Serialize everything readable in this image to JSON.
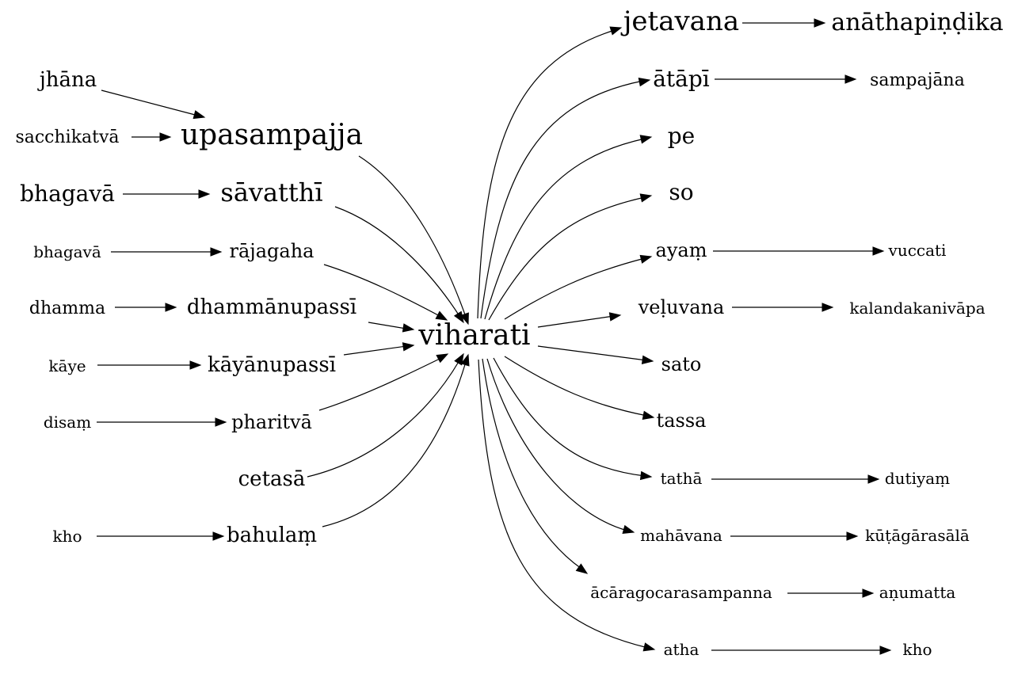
{
  "center": {
    "id": "viharati",
    "label": "viharati"
  },
  "nodes": [
    {
      "id": "jhana",
      "label": "jhāna"
    },
    {
      "id": "sacchikatva",
      "label": "sacchikatvā"
    },
    {
      "id": "upasampajja",
      "label": "upasampajja"
    },
    {
      "id": "bhagava1",
      "label": "bhagavā"
    },
    {
      "id": "savatthi",
      "label": "sāvatthī"
    },
    {
      "id": "bhagava2",
      "label": "bhagavā"
    },
    {
      "id": "rajagaha",
      "label": "rājagaha"
    },
    {
      "id": "dhamma",
      "label": "dhamma"
    },
    {
      "id": "dhammanupassi",
      "label": "dhammānupassī"
    },
    {
      "id": "kaye",
      "label": "kāye"
    },
    {
      "id": "kayanupassi",
      "label": "kāyānupassī"
    },
    {
      "id": "disam",
      "label": "disaṃ"
    },
    {
      "id": "pharitva",
      "label": "pharitvā"
    },
    {
      "id": "cetasa",
      "label": "cetasā"
    },
    {
      "id": "kho1",
      "label": "kho"
    },
    {
      "id": "bahulam",
      "label": "bahulaṃ"
    },
    {
      "id": "jetavana",
      "label": "jetavana"
    },
    {
      "id": "anathapindika",
      "label": "anāthapiṇḍika"
    },
    {
      "id": "atapi",
      "label": "ātāpī"
    },
    {
      "id": "sampajana",
      "label": "sampajāna"
    },
    {
      "id": "pe",
      "label": "pe"
    },
    {
      "id": "so",
      "label": "so"
    },
    {
      "id": "ayam",
      "label": "ayaṃ"
    },
    {
      "id": "vuccati",
      "label": "vuccati"
    },
    {
      "id": "veluvana",
      "label": "veḷuvana"
    },
    {
      "id": "kalandakanivapa",
      "label": "kalandakanivāpa"
    },
    {
      "id": "sato",
      "label": "sato"
    },
    {
      "id": "tassa",
      "label": "tassa"
    },
    {
      "id": "tatha",
      "label": "tathā"
    },
    {
      "id": "dutiyam",
      "label": "dutiyaṃ"
    },
    {
      "id": "mahavana",
      "label": "mahāvana"
    },
    {
      "id": "kutagarasala",
      "label": "kūṭāgārasālā"
    },
    {
      "id": "acaragocarasampanna",
      "label": "ācāragocarasampanna"
    },
    {
      "id": "anumatta",
      "label": "aṇumatta"
    },
    {
      "id": "atha",
      "label": "atha"
    },
    {
      "id": "kho2",
      "label": "kho"
    }
  ],
  "edges": [
    {
      "from": "jhana",
      "to": "upasampajja"
    },
    {
      "from": "sacchikatva",
      "to": "upasampajja"
    },
    {
      "from": "upasampajja",
      "to": "viharati"
    },
    {
      "from": "bhagava1",
      "to": "savatthi"
    },
    {
      "from": "savatthi",
      "to": "viharati"
    },
    {
      "from": "bhagava2",
      "to": "rajagaha"
    },
    {
      "from": "rajagaha",
      "to": "viharati"
    },
    {
      "from": "dhamma",
      "to": "dhammanupassi"
    },
    {
      "from": "dhammanupassi",
      "to": "viharati"
    },
    {
      "from": "kaye",
      "to": "kayanupassi"
    },
    {
      "from": "kayanupassi",
      "to": "viharati"
    },
    {
      "from": "disam",
      "to": "pharitva"
    },
    {
      "from": "pharitva",
      "to": "viharati"
    },
    {
      "from": "cetasa",
      "to": "viharati"
    },
    {
      "from": "kho1",
      "to": "bahulam"
    },
    {
      "from": "bahulam",
      "to": "viharati"
    },
    {
      "from": "viharati",
      "to": "jetavana"
    },
    {
      "from": "jetavana",
      "to": "anathapindika"
    },
    {
      "from": "viharati",
      "to": "atapi"
    },
    {
      "from": "atapi",
      "to": "sampajana"
    },
    {
      "from": "viharati",
      "to": "pe"
    },
    {
      "from": "viharati",
      "to": "so"
    },
    {
      "from": "viharati",
      "to": "ayam"
    },
    {
      "from": "ayam",
      "to": "vuccati"
    },
    {
      "from": "viharati",
      "to": "veluvana"
    },
    {
      "from": "veluvana",
      "to": "kalandakanivapa"
    },
    {
      "from": "viharati",
      "to": "sato"
    },
    {
      "from": "viharati",
      "to": "tassa"
    },
    {
      "from": "viharati",
      "to": "tatha"
    },
    {
      "from": "tatha",
      "to": "dutiyam"
    },
    {
      "from": "viharati",
      "to": "mahavana"
    },
    {
      "from": "mahavana",
      "to": "kutagarasala"
    },
    {
      "from": "viharati",
      "to": "acaragocarasampanna"
    },
    {
      "from": "acaragocarasampanna",
      "to": "anumatta"
    },
    {
      "from": "viharati",
      "to": "atha"
    },
    {
      "from": "atha",
      "to": "kho2"
    }
  ]
}
